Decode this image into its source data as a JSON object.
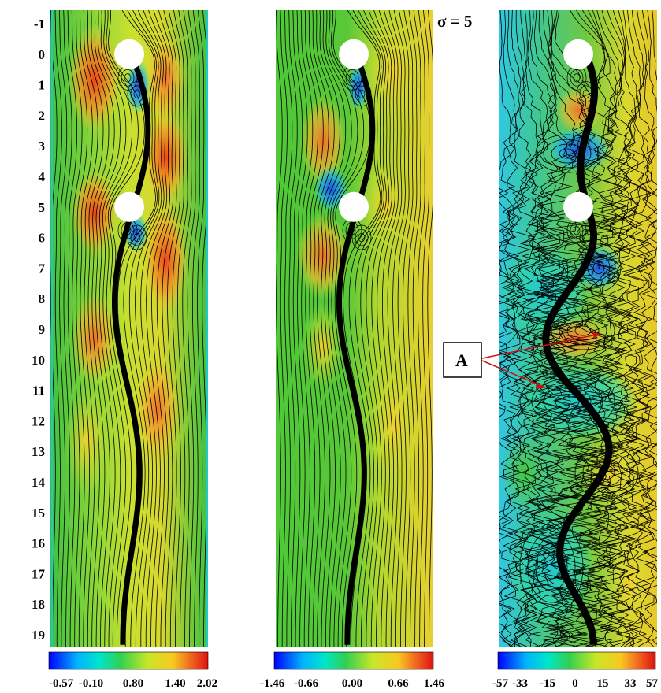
{
  "figure": {
    "sigma_label": "σ = 5",
    "callout_label": "A",
    "y_axis_ticks": [
      "-1",
      "0",
      "1",
      "2",
      "3",
      "4",
      "5",
      "6",
      "7",
      "8",
      "9",
      "10",
      "11",
      "12",
      "13",
      "14",
      "15",
      "16",
      "17",
      "18",
      "19"
    ],
    "panels": [
      {
        "id": "left",
        "colorbar_ticks": [
          "-0.57",
          "-0.10",
          "0.80",
          "1.40",
          "2.02"
        ],
        "colorbar_range": [
          -0.57,
          2.02
        ]
      },
      {
        "id": "middle",
        "colorbar_ticks": [
          "-1.46",
          "-0.66",
          "0.00",
          "0.66",
          "1.46"
        ],
        "colorbar_range": [
          -1.46,
          1.46
        ]
      },
      {
        "id": "right",
        "colorbar_ticks": [
          "-57",
          "-33",
          "-15",
          "0",
          "15",
          "33",
          "57"
        ],
        "colorbar_range": [
          -57,
          57
        ]
      }
    ],
    "cylinder_positions": [
      0,
      5
    ],
    "colormap": [
      "#0000ff",
      "#00c8ff",
      "#00e0a0",
      "#40d040",
      "#c8e628",
      "#f0d020",
      "#f08020",
      "#e02010"
    ]
  }
}
